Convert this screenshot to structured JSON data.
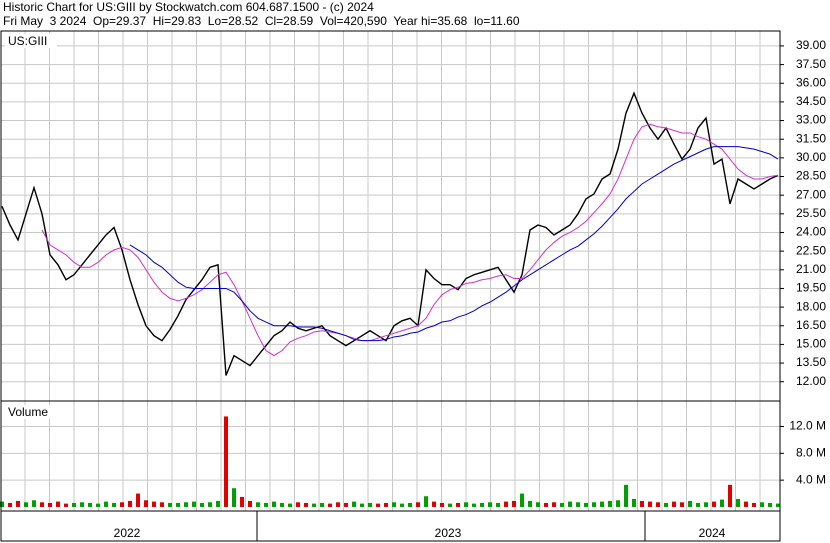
{
  "header": {
    "line1": "Historic Chart for US:GIII by Stockwatch.com 604.687.1500 - (c) 2024",
    "line2": "Fri May  3 2024  Op=29.37  Hi=29.83  Lo=28.52  Cl=28.59  Vol=420,590  Year hi=35.68  lo=11.60"
  },
  "x_axis_labels": [
    "2022",
    "2023",
    "2024"
  ],
  "chart_data": [
    {
      "type": "line",
      "label": "US:GIII",
      "grid": true,
      "ylim": [
        10.45,
        40.2
      ],
      "yticks": [
        {
          "value": 12,
          "label": "12.00"
        },
        {
          "value": 13.5,
          "label": "13.50"
        },
        {
          "value": 15,
          "label": "15.00"
        },
        {
          "value": 16.5,
          "label": "16.50"
        },
        {
          "value": 18,
          "label": "18.00"
        },
        {
          "value": 19.5,
          "label": "19.50"
        },
        {
          "value": 21,
          "label": "21.00"
        },
        {
          "value": 22.5,
          "label": "22.50"
        },
        {
          "value": 24,
          "label": "24.00"
        },
        {
          "value": 25.5,
          "label": "25.50"
        },
        {
          "value": 27,
          "label": "27.00"
        },
        {
          "value": 28.5,
          "label": "28.50"
        },
        {
          "value": 30,
          "label": "30.00"
        },
        {
          "value": 31.5,
          "label": "31.50"
        },
        {
          "value": 33,
          "label": "33.00"
        },
        {
          "value": 34.5,
          "label": "34.50"
        },
        {
          "value": 36,
          "label": "36.00"
        },
        {
          "value": 37.5,
          "label": "37.50"
        },
        {
          "value": 39,
          "label": "39.00"
        }
      ],
      "series": [
        {
          "color": "#000000",
          "values": [
            26.1,
            24.6,
            23.4,
            25.5,
            27.6,
            25.5,
            22.2,
            21.4,
            20.2,
            20.6,
            21.4,
            22.2,
            23.0,
            23.8,
            24.4,
            22.6,
            20.2,
            18.2,
            16.5,
            15.7,
            15.3,
            16.2,
            17.3,
            18.6,
            19.4,
            20.2,
            21.2,
            21.4,
            12.5,
            14.1,
            13.7,
            13.3,
            14.1,
            14.9,
            15.7,
            16.1,
            16.8,
            16.3,
            16.1,
            16.3,
            16.5,
            15.7,
            15.3,
            14.9,
            15.3,
            15.7,
            16.1,
            15.7,
            15.3,
            16.5,
            16.9,
            17.1,
            16.5,
            21.0,
            20.3,
            19.8,
            19.8,
            19.4,
            20.3,
            20.6,
            20.8,
            21.0,
            21.2,
            20.2,
            19.2,
            20.6,
            24.2,
            24.6,
            24.4,
            23.8,
            24.2,
            24.6,
            25.5,
            26.7,
            27.1,
            28.3,
            28.7,
            30.7,
            33.6,
            35.2,
            33.6,
            32.4,
            31.5,
            32.4,
            31.1,
            29.9,
            30.7,
            32.4,
            33.2,
            29.5,
            29.9,
            26.3,
            28.3,
            27.9,
            27.5,
            27.9,
            28.3,
            28.59
          ]
        },
        {
          "color": "#d030d0",
          "values": [
            null,
            null,
            null,
            null,
            null,
            24.2,
            23.0,
            22.6,
            22.2,
            21.6,
            21.2,
            21.2,
            21.6,
            22.2,
            22.6,
            22.8,
            22.6,
            22.0,
            21.0,
            20.0,
            19.2,
            18.7,
            18.5,
            18.7,
            19.0,
            19.4,
            20.0,
            20.6,
            20.8,
            19.8,
            18.5,
            17.1,
            15.7,
            14.5,
            14.1,
            14.5,
            15.2,
            15.5,
            15.7,
            16.0,
            16.1,
            16.0,
            15.9,
            15.7,
            15.5,
            15.3,
            15.3,
            15.5,
            15.7,
            15.9,
            16.1,
            16.3,
            16.5,
            17.1,
            18.2,
            19.0,
            19.4,
            19.6,
            19.9,
            20.0,
            20.2,
            20.3,
            20.5,
            20.6,
            20.3,
            20.3,
            21.0,
            21.8,
            22.6,
            23.2,
            23.7,
            24.0,
            24.4,
            24.9,
            25.6,
            26.3,
            27.1,
            28.3,
            29.9,
            31.5,
            32.5,
            32.7,
            32.5,
            32.4,
            32.2,
            32.0,
            32.0,
            31.7,
            31.5,
            31.1,
            30.7,
            29.9,
            29.1,
            28.6,
            28.3,
            28.3,
            28.5,
            28.6
          ]
        },
        {
          "color": "#0000c0",
          "values": [
            null,
            null,
            null,
            null,
            null,
            null,
            null,
            null,
            null,
            null,
            null,
            null,
            null,
            null,
            null,
            null,
            23.0,
            22.6,
            22.2,
            21.6,
            21.2,
            20.6,
            20.0,
            19.6,
            19.5,
            19.5,
            19.5,
            19.5,
            19.5,
            19.2,
            18.5,
            17.7,
            17.1,
            16.8,
            16.5,
            16.5,
            16.5,
            16.4,
            16.4,
            16.4,
            16.3,
            16.1,
            15.9,
            15.7,
            15.4,
            15.3,
            15.3,
            15.3,
            15.4,
            15.6,
            15.7,
            15.9,
            16.0,
            16.3,
            16.5,
            16.8,
            16.9,
            17.2,
            17.4,
            17.7,
            18.1,
            18.4,
            18.8,
            19.2,
            19.7,
            20.2,
            20.6,
            21.0,
            21.4,
            21.8,
            22.2,
            22.6,
            22.9,
            23.4,
            23.9,
            24.5,
            25.2,
            25.9,
            26.7,
            27.3,
            27.9,
            28.3,
            28.7,
            29.1,
            29.5,
            29.8,
            30.1,
            30.4,
            30.7,
            30.9,
            30.9,
            30.9,
            30.9,
            30.8,
            30.7,
            30.5,
            30.3,
            29.9
          ]
        }
      ]
    },
    {
      "type": "bar",
      "label": "Volume",
      "grid": true,
      "ylim": [
        -0.6,
        15.8
      ],
      "yticks": [
        {
          "value": 4,
          "label": "4.0 M"
        },
        {
          "value": 8,
          "label": "8.0 M"
        },
        {
          "value": 12,
          "label": "12.0 M"
        }
      ],
      "up_color": "#00a000",
      "down_color": "#e00000",
      "values": [
        0.8,
        0.6,
        0.9,
        0.7,
        1.0,
        0.7,
        0.6,
        0.8,
        0.5,
        0.6,
        0.7,
        0.6,
        0.5,
        0.8,
        0.6,
        0.7,
        0.9,
        2.0,
        1.0,
        0.8,
        0.7,
        0.6,
        0.6,
        0.7,
        0.8,
        0.6,
        0.7,
        0.9,
        13.5,
        2.8,
        1.5,
        0.9,
        0.7,
        0.6,
        0.8,
        0.6,
        0.5,
        0.7,
        0.6,
        0.5,
        0.6,
        0.5,
        0.7,
        0.6,
        0.8,
        0.5,
        0.6,
        0.5,
        0.6,
        0.7,
        0.5,
        0.6,
        0.7,
        1.6,
        0.8,
        0.6,
        0.5,
        0.6,
        0.7,
        0.5,
        0.6,
        0.7,
        0.6,
        0.8,
        0.9,
        2.0,
        0.9,
        0.7,
        0.6,
        0.7,
        0.6,
        0.8,
        0.7,
        0.6,
        0.7,
        0.8,
        0.9,
        1.0,
        3.3,
        1.2,
        0.9,
        0.8,
        0.7,
        0.6,
        0.8,
        0.7,
        0.9,
        0.6,
        0.7,
        0.8,
        1.1,
        3.3,
        1.2,
        0.8,
        0.6,
        0.7,
        0.6,
        0.5
      ]
    }
  ]
}
